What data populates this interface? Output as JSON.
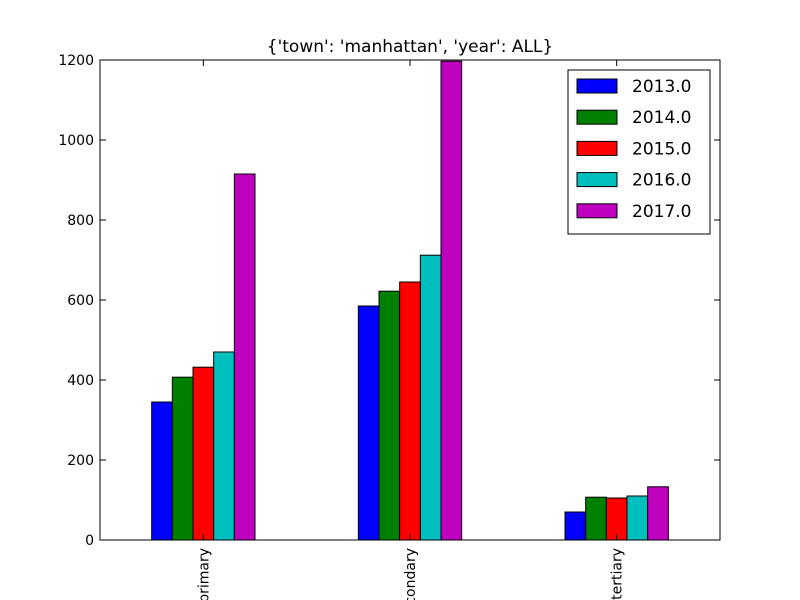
{
  "chart_data": {
    "type": "bar",
    "title": "{'town': 'manhattan', 'year': ALL}",
    "xlabel": "",
    "ylabel": "",
    "categories": [
      "primary",
      "secondary",
      "tertiary"
    ],
    "ylim": [
      0,
      1200
    ],
    "yticks": [
      0,
      200,
      400,
      600,
      800,
      1000,
      1200
    ],
    "grid": false,
    "legend_position": "top-right",
    "series": [
      {
        "name": "2013.0",
        "color": "#0000ff",
        "values": [
          345,
          585,
          70
        ]
      },
      {
        "name": "2014.0",
        "color": "#008000",
        "values": [
          407,
          622,
          107
        ]
      },
      {
        "name": "2015.0",
        "color": "#ff0000",
        "values": [
          432,
          645,
          105
        ]
      },
      {
        "name": "2016.0",
        "color": "#00bfbf",
        "values": [
          470,
          712,
          110
        ]
      },
      {
        "name": "2017.0",
        "color": "#bf00bf",
        "values": [
          915,
          1197,
          133
        ]
      }
    ]
  }
}
